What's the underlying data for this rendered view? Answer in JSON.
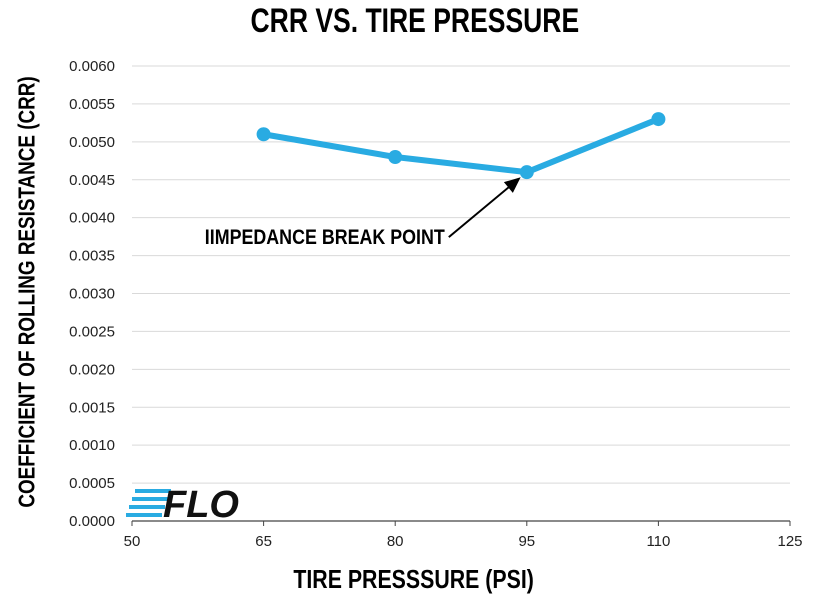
{
  "chart_data": {
    "type": "line",
    "title": "CRR VS. TIRE PRESSURE",
    "xlabel": "TIRE PRESSSURE (PSI)",
    "ylabel": "COEFFICIENT OF ROLLING RESISTANCE (CRR)",
    "xlim": [
      50,
      125
    ],
    "ylim": [
      0,
      0.006
    ],
    "x_ticks": [
      "50",
      "65",
      "80",
      "95",
      "110",
      "125"
    ],
    "y_ticks": [
      "0.0000",
      "0.0005",
      "0.0010",
      "0.0015",
      "0.0020",
      "0.0025",
      "0.0030",
      "0.0035",
      "0.0040",
      "0.0045",
      "0.0050",
      "0.0055",
      "0.0060"
    ],
    "grid": true,
    "series": [
      {
        "x": [
          65,
          80,
          95,
          110
        ],
        "y": [
          0.0051,
          0.0048,
          0.0046,
          0.0053
        ]
      }
    ],
    "annotation": {
      "text": "IIMPEDANCE BREAK POINT",
      "x": 95,
      "y": 0.0046
    }
  },
  "colors": {
    "line": "#29abe2",
    "grid": "#d9d9d9",
    "logo_blue": "#29abe2",
    "logo_black": "#111111"
  },
  "logo": {
    "text": "FLO",
    "icon": "flo-logo"
  }
}
